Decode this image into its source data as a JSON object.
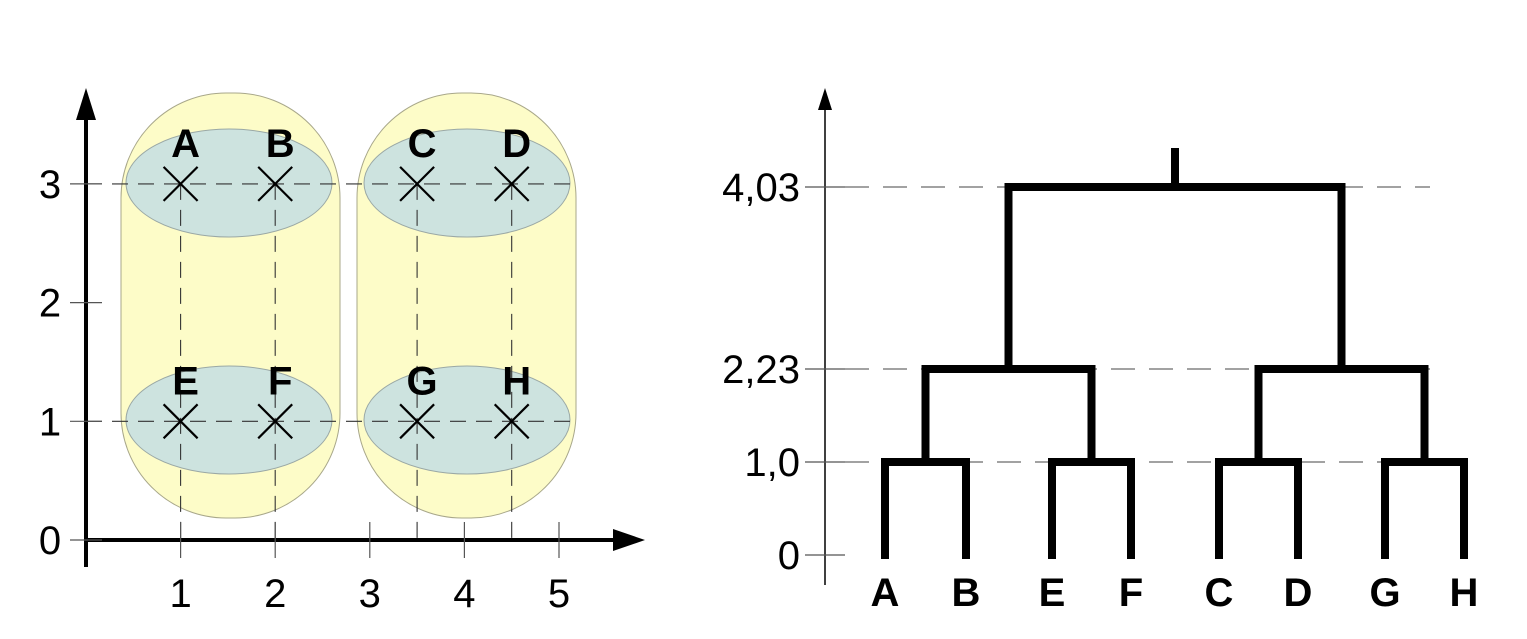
{
  "scatter_plot": {
    "x_ticks": [
      "1",
      "2",
      "3",
      "4",
      "5"
    ],
    "y_ticks": [
      "0",
      "1",
      "2",
      "3"
    ],
    "points": [
      {
        "label": "A",
        "x": 1,
        "y": 3
      },
      {
        "label": "B",
        "x": 2,
        "y": 3
      },
      {
        "label": "C",
        "x": 3.5,
        "y": 3
      },
      {
        "label": "D",
        "x": 4.5,
        "y": 3
      },
      {
        "label": "E",
        "x": 1,
        "y": 1
      },
      {
        "label": "F",
        "x": 2,
        "y": 1
      },
      {
        "label": "G",
        "x": 3.5,
        "y": 1
      },
      {
        "label": "H",
        "x": 4.5,
        "y": 1
      }
    ],
    "clusters_level_1": [
      [
        "A",
        "B"
      ],
      [
        "C",
        "D"
      ],
      [
        "E",
        "F"
      ],
      [
        "G",
        "H"
      ]
    ],
    "clusters_level_2": [
      [
        "A",
        "B",
        "E",
        "F"
      ],
      [
        "C",
        "D",
        "G",
        "H"
      ]
    ],
    "colors": {
      "small_cluster": "#cde3df",
      "large_cluster": "#fdfcc8"
    }
  },
  "dendrogram": {
    "y_ticks": [
      "0",
      "1,0",
      "2,23",
      "4,03"
    ],
    "merge_heights": [
      0,
      1.0,
      2.23,
      4.03
    ],
    "leaves": [
      "A",
      "B",
      "E",
      "F",
      "C",
      "D",
      "G",
      "H"
    ]
  },
  "chart_data": {
    "type": "scatter",
    "x": [
      1,
      2,
      3.5,
      4.5,
      1,
      2,
      3.5,
      4.5
    ],
    "y": [
      3,
      3,
      3,
      3,
      1,
      1,
      1,
      1
    ],
    "point_labels": [
      "A",
      "B",
      "C",
      "D",
      "E",
      "F",
      "G",
      "H"
    ],
    "xlim": [
      0,
      6
    ],
    "ylim": [
      0,
      3.5
    ],
    "dendrogram_merges": [
      {
        "left": "A",
        "right": "B",
        "height": 1.0
      },
      {
        "left": "E",
        "right": "F",
        "height": 1.0
      },
      {
        "left": "C",
        "right": "D",
        "height": 1.0
      },
      {
        "left": "G",
        "right": "H",
        "height": 1.0
      },
      {
        "left": "AB",
        "right": "EF",
        "height": 2.23
      },
      {
        "left": "CD",
        "right": "GH",
        "height": 2.23
      },
      {
        "left": "ABEF",
        "right": "CDGH",
        "height": 4.03
      }
    ]
  }
}
